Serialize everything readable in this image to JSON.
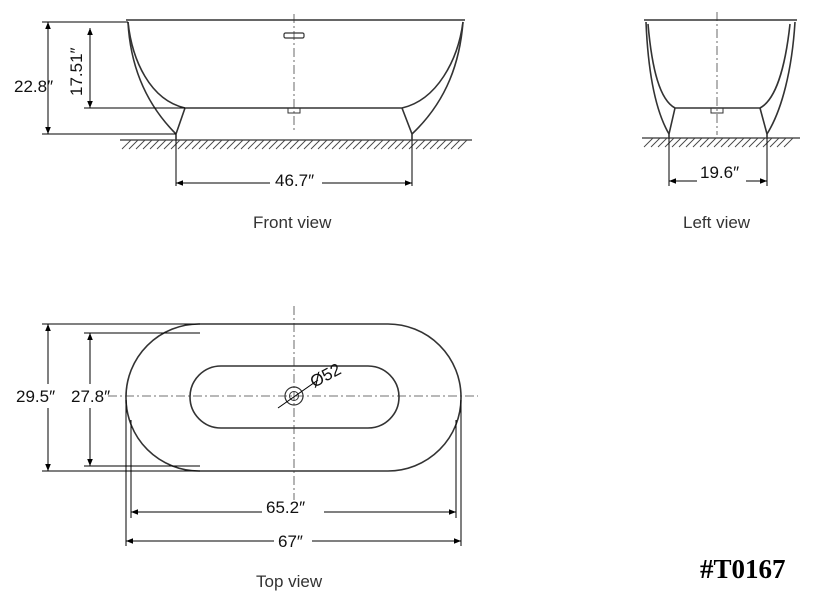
{
  "front_view": {
    "caption": "Front view",
    "overall_height": "22.8″",
    "interior_depth": "17.51″",
    "base_length": "46.7″"
  },
  "left_view": {
    "caption": "Left view",
    "base_width": "19.6″"
  },
  "top_view": {
    "caption": "Top view",
    "outer_width": "29.5″",
    "inner_width": "27.8″",
    "drain_diameter": "Ø52",
    "inner_length": "65.2″",
    "outer_length": "67″"
  },
  "model_number": "#T0167"
}
